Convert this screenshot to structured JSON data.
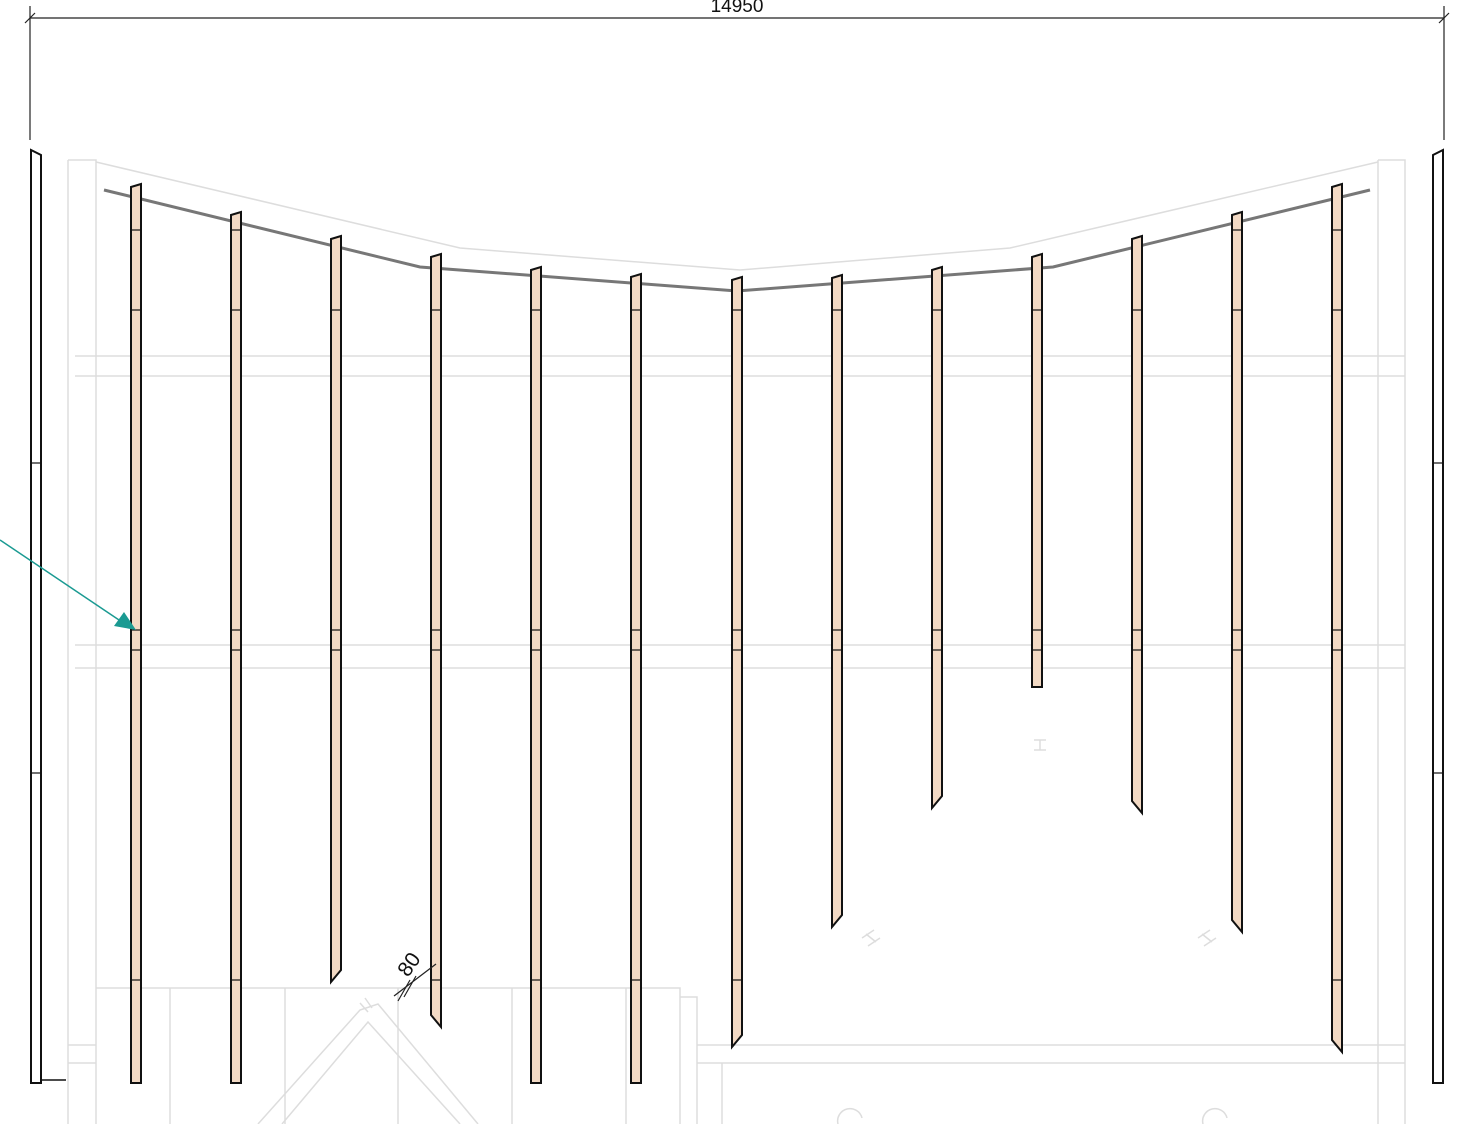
{
  "dimensions": {
    "overall_width_label": "14950",
    "joist_thickness_label": "80"
  },
  "colors": {
    "joist_fill": "#f2d9c4",
    "joist_stroke": "#111111",
    "ridge_line": "#777777",
    "background_lines": "#dddddd",
    "arrow": "#1a9a92"
  },
  "callout": {
    "arrow_icon": "teal-pointer-arrow-icon"
  },
  "joists": [
    {
      "id": "joist-1",
      "top_from_ridge": true,
      "length_class": "full"
    },
    {
      "id": "joist-2",
      "top_from_ridge": true,
      "length_class": "full"
    },
    {
      "id": "joist-3",
      "top_from_ridge": true,
      "length_class": "short-angled"
    },
    {
      "id": "joist-4",
      "top_from_ridge": true,
      "length_class": "short-angled"
    },
    {
      "id": "joist-5",
      "top_from_ridge": true,
      "length_class": "full"
    },
    {
      "id": "joist-6",
      "top_from_ridge": true,
      "length_class": "full"
    },
    {
      "id": "joist-7",
      "top_from_ridge": true,
      "length_class": "short-angled"
    },
    {
      "id": "joist-8",
      "top_from_ridge": true,
      "length_class": "short-angled"
    },
    {
      "id": "joist-9",
      "top_from_ridge": true,
      "length_class": "short-angled"
    },
    {
      "id": "joist-10",
      "top_from_ridge": true,
      "length_class": "short-square"
    },
    {
      "id": "joist-11",
      "top_from_ridge": true,
      "length_class": "short-angled"
    },
    {
      "id": "joist-12",
      "top_from_ridge": true,
      "length_class": "short-angled"
    },
    {
      "id": "joist-13",
      "top_from_ridge": true,
      "length_class": "short-angled"
    }
  ]
}
